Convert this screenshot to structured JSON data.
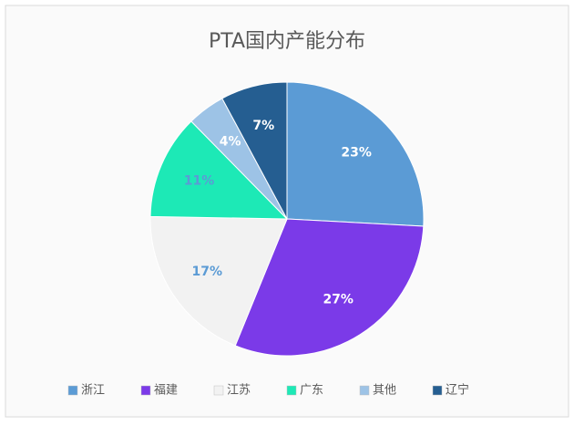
{
  "chart_data": {
    "type": "pie",
    "title": "PTA国内产能分布",
    "categories": [
      "浙江",
      "福建",
      "江苏",
      "广东",
      "其他",
      "辽宁"
    ],
    "values": [
      23,
      27,
      17,
      11,
      4,
      7
    ],
    "value_labels": [
      "23%",
      "27%",
      "17%",
      "11%",
      "4%",
      "7%"
    ],
    "colors": [
      "#5b9bd5",
      "#7b3ae8",
      "#f2f2f2",
      "#1de9b6",
      "#9dc3e6",
      "#255e91"
    ],
    "legend": "bottom"
  }
}
